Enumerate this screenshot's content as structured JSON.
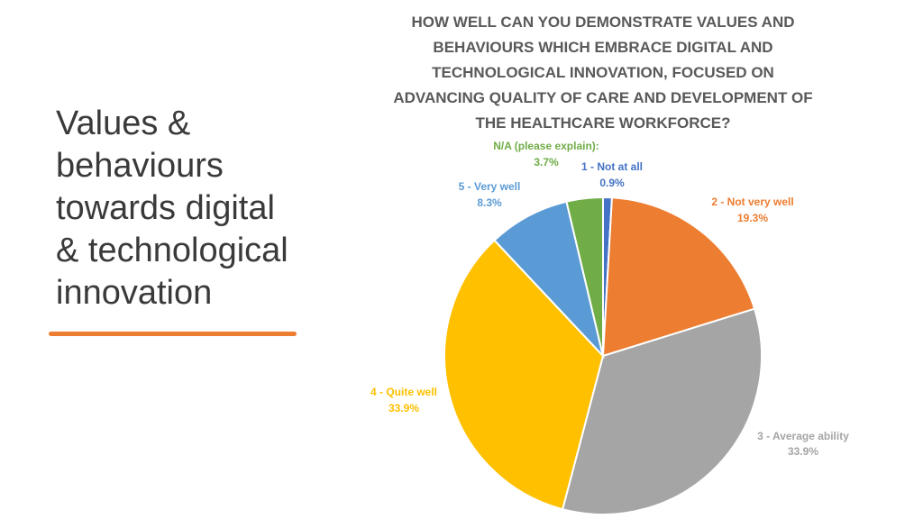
{
  "slide": {
    "title_lines": [
      "Values &",
      "behaviours",
      "towards digital",
      "& technological",
      "innovation"
    ],
    "accent_color": "#ED7D31"
  },
  "chart_data": {
    "type": "pie",
    "title_lines": [
      "HOW WELL CAN YOU DEMONSTRATE VALUES AND",
      "BEHAVIOURS WHICH EMBRACE DIGITAL AND",
      "TECHNOLOGICAL INNOVATION, FOCUSED ON",
      "ADVANCING QUALITY OF CARE AND DEVELOPMENT OF",
      "THE HEALTHCARE WORKFORCE?"
    ],
    "categories": [
      "1 - Not at all",
      "2 - Not very well",
      "3 - Average ability",
      "4 - Quite well",
      "5 - Very well",
      "N/A (please explain):"
    ],
    "values": [
      0.9,
      19.3,
      33.9,
      33.9,
      8.3,
      3.7
    ],
    "value_labels": [
      "0.9%",
      "19.3%",
      "33.9%",
      "33.9%",
      "8.3%",
      "3.7%"
    ],
    "colors": [
      "#4472C4",
      "#ED7D31",
      "#A5A5A5",
      "#FFC000",
      "#5B9BD5",
      "#70AD47"
    ],
    "label_colors": [
      "#4472C4",
      "#ED7D31",
      "#A5A5A5",
      "#FFC000",
      "#5B9BD5",
      "#70AD47"
    ],
    "start_angle_deg": 0,
    "direction": "clockwise",
    "legend": "none"
  }
}
